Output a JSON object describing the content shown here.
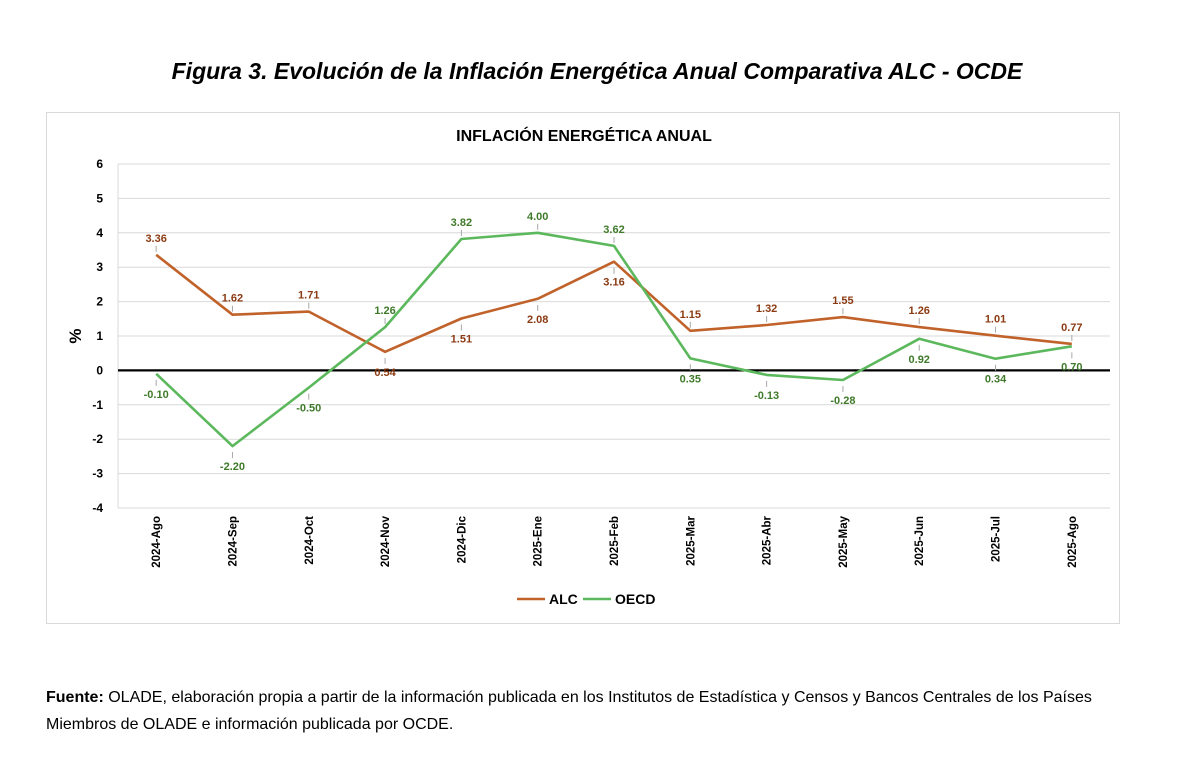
{
  "figure": {
    "title": "Figura 3. Evolución de la Inflación Energética Anual Comparativa ALC - OCDE"
  },
  "source": {
    "label": "Fuente:",
    "text": " OLADE, elaboración propia a partir de la información publicada en los Institutos de Estadística y Censos y Bancos Centrales de los Países Miembros de OLADE e información publicada por OCDE."
  },
  "colors": {
    "alc": "#c0622a",
    "oecd": "#5cb85c",
    "alc_label": "#8b3a12",
    "oecd_label": "#3f7a2a",
    "grid": "#d9d9d9",
    "zero_line": "#000000"
  },
  "chart_data": {
    "type": "line",
    "title": "INFLACIÓN ENERGÉTICA ANUAL",
    "xlabel": "",
    "ylabel": "%",
    "ylim": [
      -4,
      6
    ],
    "yticks": [
      6,
      5,
      4,
      3,
      2,
      1,
      0,
      -1,
      -2,
      -3,
      -4
    ],
    "grid": true,
    "legend_position": "bottom",
    "categories": [
      "2024-Ago",
      "2024-Sep",
      "2024-Oct",
      "2024-Nov",
      "2024-Dic",
      "2025-Ene",
      "2025-Feb",
      "2025-Mar",
      "2025-Abr",
      "2025-May",
      "2025-Jun",
      "2025-Jul",
      "2025-Ago"
    ],
    "series": [
      {
        "name": "ALC",
        "values": [
          3.36,
          1.62,
          1.71,
          0.54,
          1.51,
          2.08,
          3.16,
          1.15,
          1.32,
          1.55,
          1.26,
          1.01,
          0.77
        ],
        "labels": [
          "3.36",
          "1.62",
          "1.71",
          "0.54",
          "1.51",
          "2.08",
          "3.16",
          "1.15",
          "1.32",
          "1.55",
          "1.26",
          "1.01",
          "0.77"
        ]
      },
      {
        "name": "OECD",
        "values": [
          -0.1,
          -2.2,
          -0.5,
          1.26,
          3.82,
          4.0,
          3.62,
          0.35,
          -0.13,
          -0.28,
          0.92,
          0.34,
          0.7
        ],
        "labels": [
          "-0.10",
          "-2.20",
          "-0.50",
          "1.26",
          "3.82",
          "4.00",
          "3.62",
          "0.35",
          "-0.13",
          "-0.28",
          "0.92",
          "0.34",
          "0.70"
        ]
      }
    ]
  }
}
